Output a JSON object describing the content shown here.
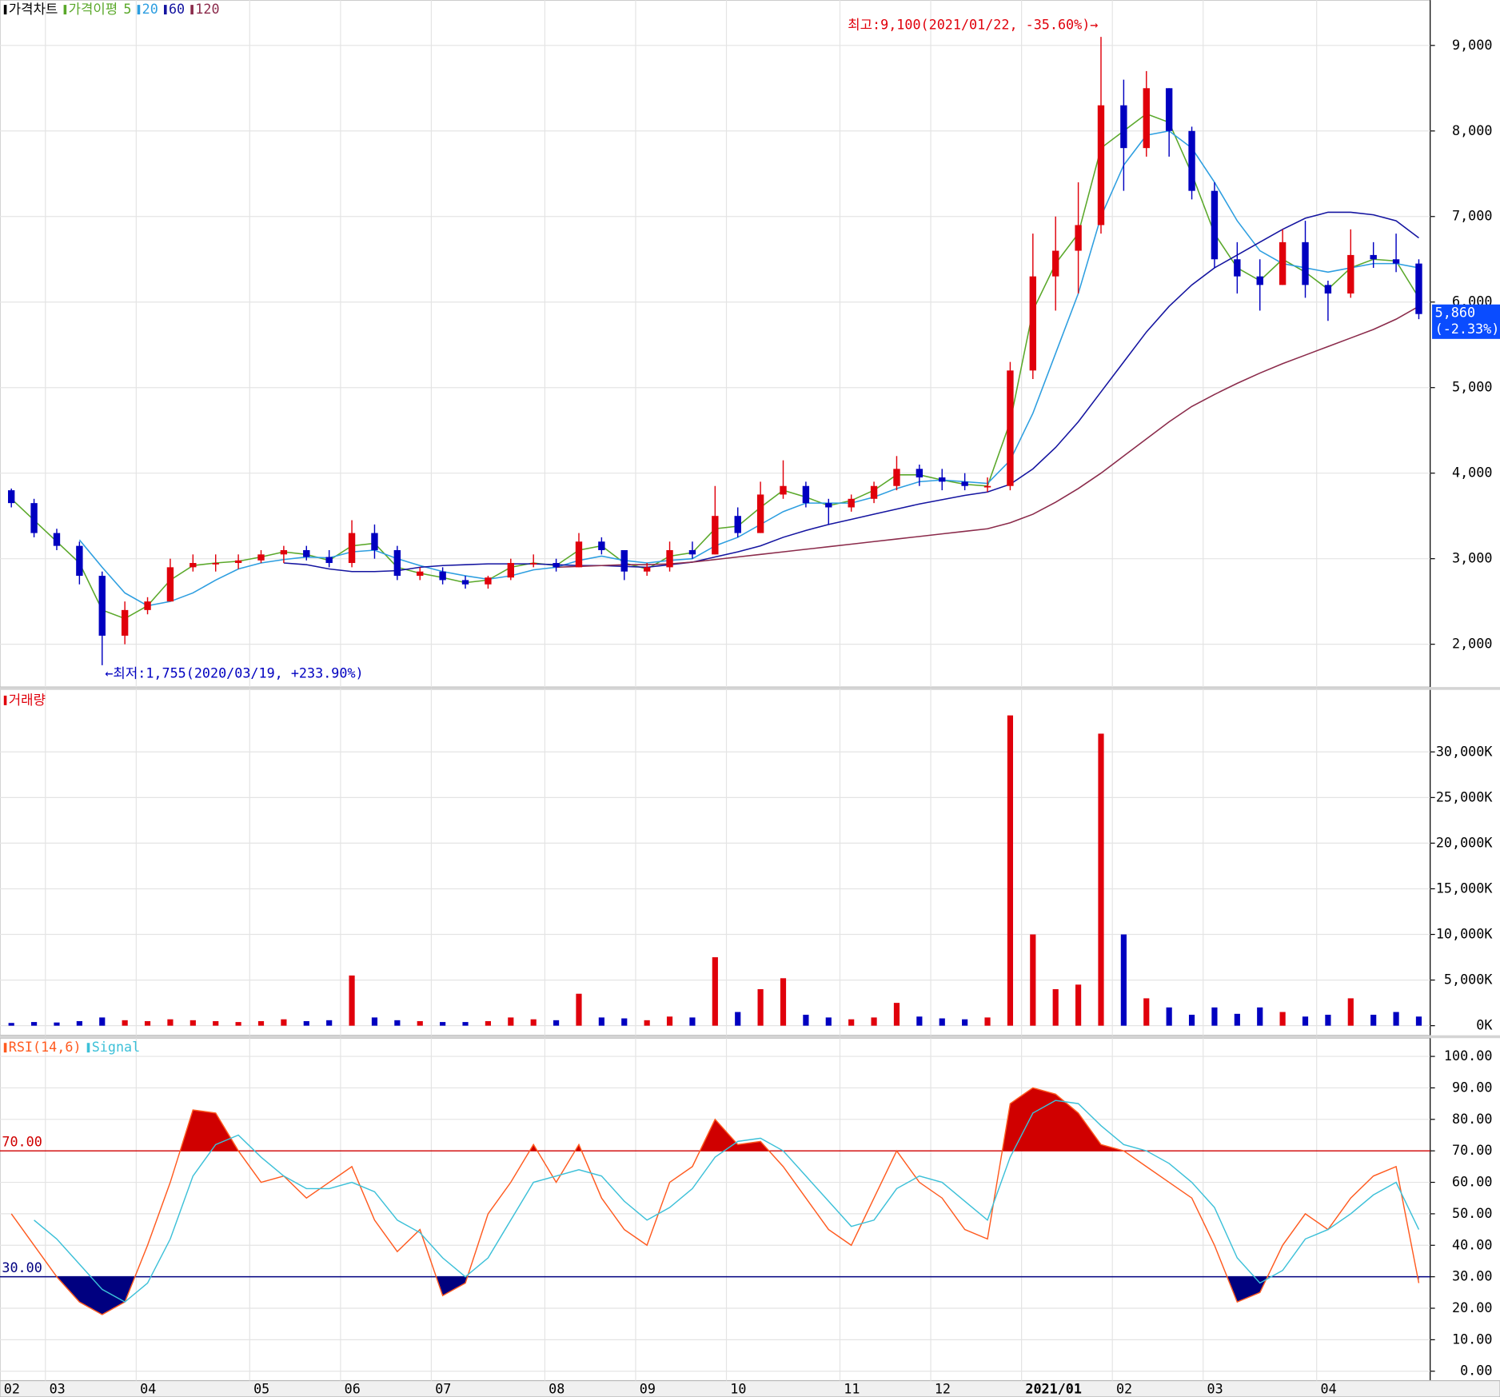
{
  "chart_data": [
    {
      "type": "candlestick",
      "title": "가격차트",
      "ma_title": "가격이평",
      "up_color": "#e0000b",
      "down_color": "#0000c0",
      "open": [
        3800,
        3650,
        3300,
        3150,
        2800,
        2100,
        2400,
        2500,
        2900,
        2950,
        2950,
        2980,
        3050,
        3100,
        3020,
        2950,
        3300,
        3100,
        2800,
        2850,
        2750,
        2700,
        2780,
        2950,
        2950,
        2900,
        3200,
        3100,
        2850,
        2900,
        3100,
        3050,
        3500,
        3300,
        3750,
        3850,
        3650,
        3600,
        3700,
        3850,
        4050,
        3950,
        3900,
        3850,
        3850,
        5200,
        6300,
        6600,
        6900,
        8300,
        7800,
        8500,
        8000,
        7300,
        6500,
        6300,
        6200,
        6700,
        6200,
        6100,
        6550,
        6500,
        6450
      ],
      "high": [
        3820,
        3700,
        3350,
        3200,
        2850,
        2500,
        2550,
        3000,
        3050,
        3050,
        3050,
        3100,
        3150,
        3150,
        3100,
        3450,
        3400,
        3150,
        2900,
        2900,
        2800,
        2800,
        3000,
        3050,
        3000,
        3300,
        3250,
        3100,
        2950,
        3200,
        3200,
        3850,
        3600,
        3900,
        4150,
        3900,
        3700,
        3750,
        3900,
        4200,
        4100,
        4050,
        4000,
        3950,
        5300,
        6800,
        7000,
        7400,
        9100,
        8600,
        8700,
        8500,
        8050,
        7400,
        6700,
        6500,
        6850,
        6950,
        6250,
        6850,
        6700,
        6800,
        6500
      ],
      "low": [
        3600,
        3250,
        3100,
        2700,
        1755,
        2000,
        2350,
        2500,
        2850,
        2850,
        2880,
        2950,
        2950,
        2980,
        2900,
        2900,
        3000,
        2750,
        2750,
        2700,
        2650,
        2650,
        2750,
        2900,
        2850,
        2900,
        3050,
        2750,
        2800,
        2850,
        3000,
        3050,
        3250,
        3300,
        3700,
        3600,
        3400,
        3550,
        3650,
        3800,
        3850,
        3800,
        3800,
        3780,
        3800,
        5100,
        5900,
        6100,
        6800,
        7300,
        7700,
        7700,
        7200,
        6400,
        6100,
        5900,
        6200,
        6050,
        5780,
        6050,
        6400,
        6350,
        5800
      ],
      "close": [
        3650,
        3300,
        3150,
        2800,
        2100,
        2400,
        2500,
        2900,
        2950,
        2950,
        2980,
        3050,
        3100,
        3020,
        2950,
        3300,
        3100,
        2800,
        2850,
        2750,
        2700,
        2780,
        2950,
        2950,
        2900,
        3200,
        3100,
        2850,
        2900,
        3100,
        3050,
        3500,
        3300,
        3750,
        3850,
        3650,
        3600,
        3700,
        3850,
        4050,
        3950,
        3900,
        3850,
        3850,
        5200,
        6300,
        6600,
        6900,
        8300,
        7800,
        8500,
        8000,
        7300,
        6500,
        6300,
        6200,
        6700,
        6200,
        6100,
        6550,
        6500,
        6450,
        5860
      ],
      "series": [
        {
          "name": "5",
          "color": "#5aa82a",
          "values": [
            3700,
            3450,
            3200,
            2950,
            2400,
            2300,
            2450,
            2750,
            2920,
            2950,
            2970,
            3020,
            3080,
            3050,
            2980,
            3150,
            3180,
            2900,
            2830,
            2780,
            2720,
            2750,
            2900,
            2950,
            2920,
            3100,
            3150,
            2950,
            2880,
            3030,
            3070,
            3350,
            3380,
            3600,
            3800,
            3720,
            3620,
            3680,
            3800,
            3980,
            3980,
            3920,
            3870,
            3850,
            4600,
            5900,
            6450,
            6800,
            7800,
            8000,
            8200,
            8100,
            7500,
            6800,
            6400,
            6250,
            6500,
            6350,
            6150,
            6400,
            6500,
            6480,
            6050
          ]
        },
        {
          "name": "20",
          "color": "#2d9ee0",
          "values": [
            null,
            null,
            null,
            3220,
            2900,
            2600,
            2450,
            2500,
            2600,
            2750,
            2880,
            2950,
            2990,
            3020,
            3010,
            3080,
            3100,
            3000,
            2920,
            2850,
            2800,
            2760,
            2800,
            2870,
            2900,
            2980,
            3030,
            2980,
            2950,
            2980,
            3000,
            3150,
            3250,
            3400,
            3550,
            3650,
            3650,
            3650,
            3720,
            3820,
            3900,
            3920,
            3900,
            3880,
            4150,
            4700,
            5400,
            6100,
            7000,
            7600,
            7950,
            8000,
            7800,
            7400,
            6950,
            6600,
            6450,
            6400,
            6350,
            6400,
            6450,
            6450,
            6400
          ]
        },
        {
          "name": "60",
          "color": "#1414a0",
          "values": [
            null,
            null,
            null,
            null,
            null,
            null,
            null,
            null,
            null,
            null,
            null,
            null,
            2950,
            2930,
            2880,
            2850,
            2850,
            2860,
            2900,
            2920,
            2930,
            2940,
            2940,
            2940,
            2930,
            2920,
            2920,
            2910,
            2900,
            2930,
            2960,
            3020,
            3080,
            3150,
            3250,
            3330,
            3400,
            3460,
            3520,
            3580,
            3640,
            3690,
            3740,
            3780,
            3870,
            4050,
            4300,
            4600,
            4950,
            5300,
            5650,
            5950,
            6200,
            6400,
            6550,
            6700,
            6850,
            6980,
            7050,
            7050,
            7020,
            6950,
            6750
          ]
        },
        {
          "name": "120",
          "color": "#8b2b4b",
          "values": [
            null,
            null,
            null,
            null,
            null,
            null,
            null,
            null,
            null,
            null,
            null,
            null,
            null,
            null,
            null,
            null,
            null,
            null,
            null,
            null,
            null,
            null,
            null,
            null,
            2900,
            2910,
            2920,
            2930,
            2930,
            2940,
            2960,
            2990,
            3020,
            3050,
            3080,
            3110,
            3140,
            3170,
            3200,
            3230,
            3260,
            3290,
            3320,
            3350,
            3420,
            3520,
            3660,
            3820,
            4000,
            4200,
            4400,
            4600,
            4780,
            4920,
            5050,
            5170,
            5280,
            5380,
            5480,
            5580,
            5680,
            5800,
            5950
          ]
        }
      ],
      "ylim": [
        1500,
        9530
      ],
      "yticks": [
        {
          "value": 2000,
          "label": "2,000"
        },
        {
          "value": 3000,
          "label": "3,000"
        },
        {
          "value": 4000,
          "label": "4,000"
        },
        {
          "value": 5000,
          "label": "5,000"
        },
        {
          "value": 6000,
          "label": "6,000"
        },
        {
          "value": 7000,
          "label": "7,000"
        },
        {
          "value": 8000,
          "label": "8,000"
        },
        {
          "value": 9000,
          "label": "9,000"
        }
      ],
      "grid": true,
      "annotations": [
        {
          "value": 9100,
          "text": "최고:9,100(2021/01/22, -35.60%)→",
          "color": "#e0000b",
          "at": "high"
        },
        {
          "value": 1755,
          "text": "←최저:1,755(2020/03/19, +233.90%)",
          "color": "#0000c0",
          "at": "low"
        }
      ],
      "last_price": {
        "value": 5860,
        "label": "5,860",
        "change": "(-2.33%)",
        "color": "#0a4cff"
      }
    },
    {
      "type": "bar",
      "title": "거래량",
      "color": "#e0000b",
      "values": [
        300,
        400,
        350,
        500,
        900,
        600,
        500,
        700,
        600,
        500,
        400,
        500,
        700,
        500,
        600,
        5500,
        900,
        600,
        500,
        400,
        400,
        500,
        900,
        700,
        600,
        3500,
        900,
        800,
        600,
        1000,
        900,
        7500,
        1500,
        4000,
        5200,
        1200,
        900,
        700,
        900,
        2500,
        1000,
        800,
        700,
        900,
        34000,
        10000,
        4000,
        4500,
        32000,
        10000,
        3000,
        2000,
        1200,
        2000,
        1300,
        2000,
        1500,
        1000,
        1200,
        3000,
        1200,
        1500,
        1000
      ],
      "ylim": [
        -1050,
        36900
      ],
      "yticks": [
        {
          "value": 0,
          "label": "0K"
        },
        {
          "value": 5000,
          "label": "5,000K"
        },
        {
          "value": 10000,
          "label": "10,000K"
        },
        {
          "value": 15000,
          "label": "15,000K"
        },
        {
          "value": 20000,
          "label": "20,000K"
        },
        {
          "value": 25000,
          "label": "25,000K"
        },
        {
          "value": 30000,
          "label": "30,000K"
        }
      ],
      "grid": true
    },
    {
      "type": "line",
      "categories": [
        "02",
        null,
        "03",
        null,
        null,
        null,
        "04",
        null,
        null,
        null,
        null,
        "05",
        null,
        null,
        null,
        "06",
        null,
        null,
        null,
        "07",
        null,
        null,
        null,
        null,
        "08",
        null,
        null,
        null,
        "09",
        null,
        null,
        null,
        "10",
        null,
        null,
        null,
        null,
        "11",
        null,
        null,
        null,
        "12",
        null,
        null,
        null,
        "2021/01",
        null,
        null,
        null,
        "02",
        null,
        null,
        null,
        "03",
        null,
        null,
        null,
        null,
        "04",
        null,
        null,
        null,
        null
      ],
      "series": [
        {
          "name": "RSI(14,6)",
          "color": "#ff5a1f",
          "values": [
            50,
            40,
            30,
            22,
            18,
            22,
            40,
            60,
            83,
            82,
            70,
            60,
            62,
            55,
            60,
            65,
            48,
            38,
            45,
            24,
            28,
            50,
            60,
            72,
            60,
            72,
            55,
            45,
            40,
            60,
            65,
            80,
            72,
            73,
            65,
            55,
            45,
            40,
            55,
            70,
            60,
            55,
            45,
            42,
            85,
            90,
            88,
            82,
            72,
            70,
            65,
            60,
            55,
            40,
            22,
            25,
            40,
            50,
            45,
            55,
            62,
            65,
            28
          ]
        },
        {
          "name": "Signal",
          "color": "#3cc0d8",
          "values": [
            null,
            48,
            42,
            34,
            26,
            22,
            28,
            42,
            62,
            72,
            75,
            68,
            62,
            58,
            58,
            60,
            57,
            48,
            44,
            36,
            30,
            36,
            48,
            60,
            62,
            64,
            62,
            54,
            48,
            52,
            58,
            68,
            73,
            74,
            70,
            62,
            54,
            46,
            48,
            58,
            62,
            60,
            54,
            48,
            68,
            82,
            86,
            85,
            78,
            72,
            70,
            66,
            60,
            52,
            36,
            28,
            32,
            42,
            45,
            50,
            56,
            60,
            45
          ]
        }
      ],
      "thresholds": [
        {
          "value": 70,
          "label": "70.00",
          "color": "#d00000"
        },
        {
          "value": 30,
          "label": "30.00",
          "color": "#000080"
        }
      ],
      "ylim": [
        -3,
        105.8
      ],
      "yticks": [
        {
          "value": 0,
          "label": "0.00"
        },
        {
          "value": 10,
          "label": "10.00"
        },
        {
          "value": 20,
          "label": "20.00"
        },
        {
          "value": 30,
          "label": "30.00"
        },
        {
          "value": 40,
          "label": "40.00"
        },
        {
          "value": 50,
          "label": "50.00"
        },
        {
          "value": 60,
          "label": "60.00"
        },
        {
          "value": 70,
          "label": "70.00"
        },
        {
          "value": 80,
          "label": "80.00"
        },
        {
          "value": 90,
          "label": "90.00"
        },
        {
          "value": 100,
          "label": "100.00"
        }
      ],
      "grid": true
    }
  ]
}
